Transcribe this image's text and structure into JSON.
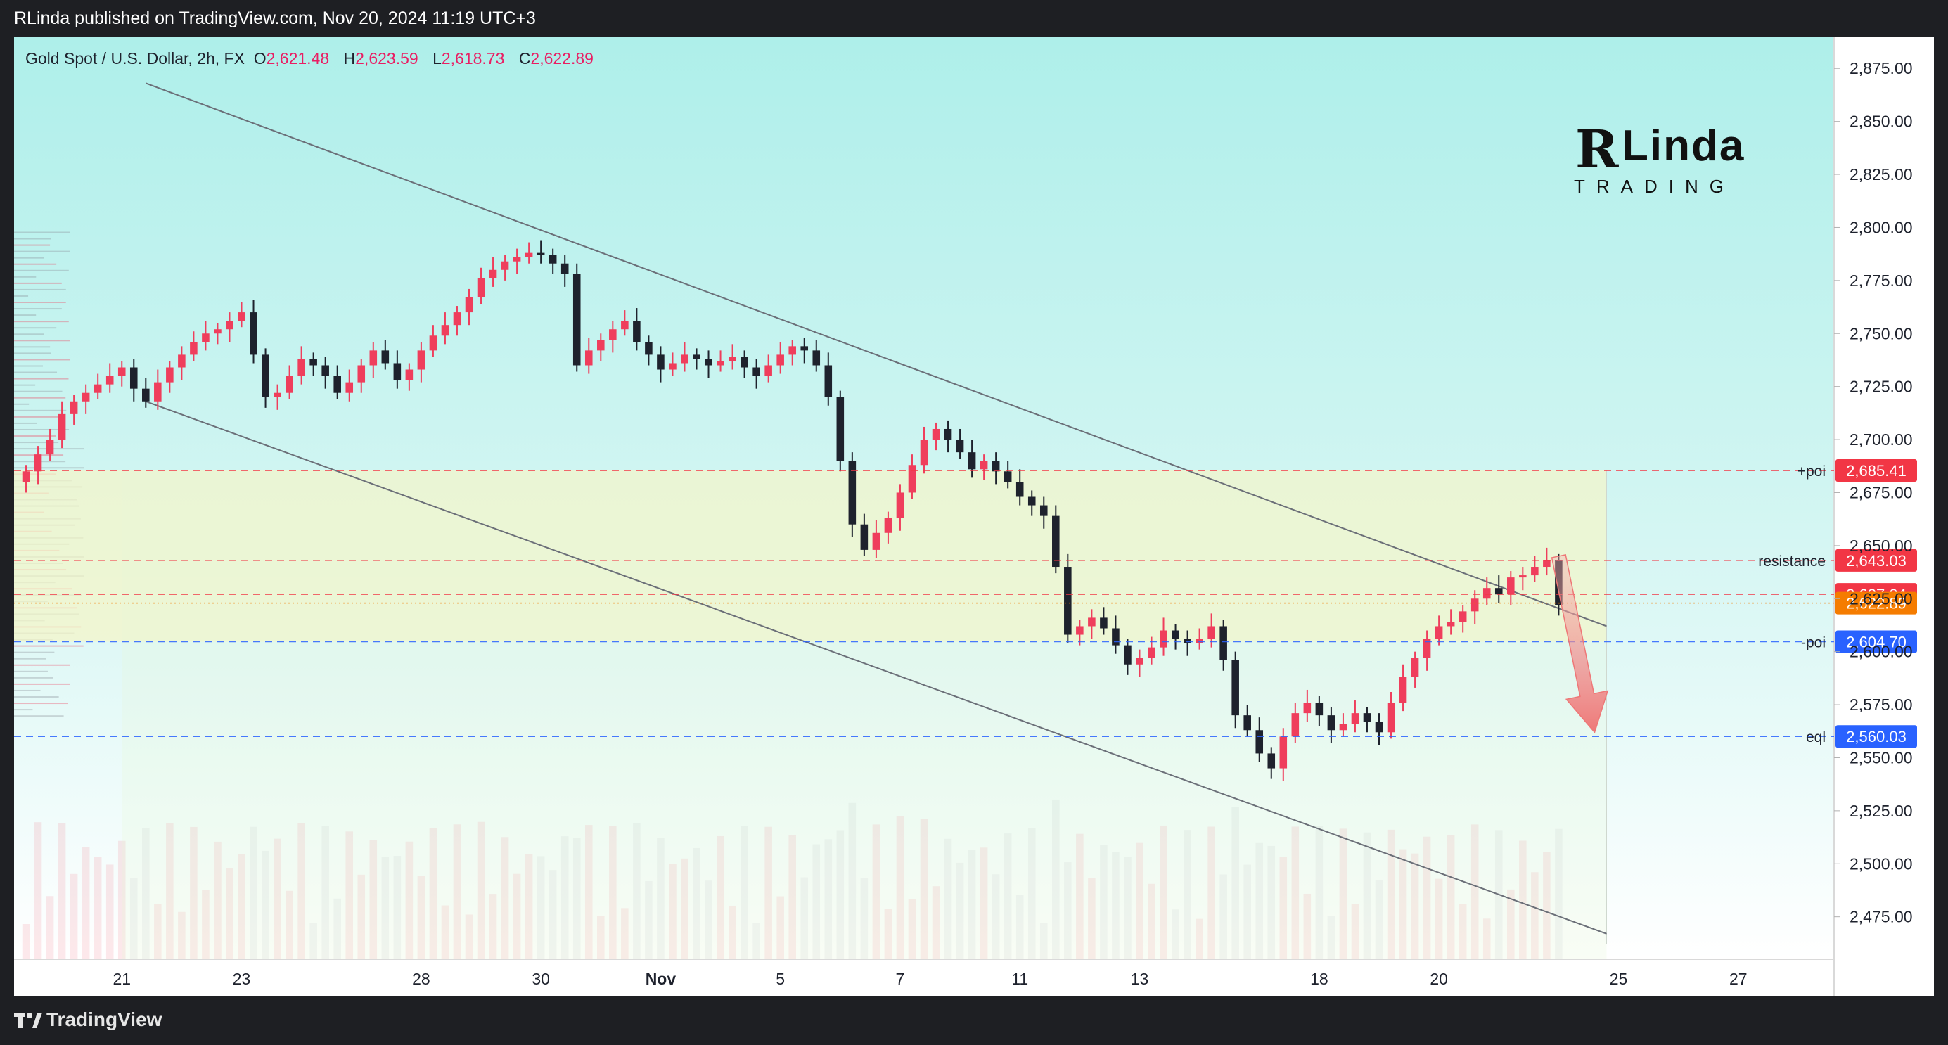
{
  "header": {
    "published": "RLinda published on TradingView.com, Nov 20, 2024 11:19 UTC+3"
  },
  "legend": {
    "symbol": "Gold Spot / U.S. Dollar, 2h, FX",
    "o_label": "O",
    "o": "2,621.48",
    "h_label": "H",
    "h": "2,623.59",
    "l_label": "L",
    "l": "2,618.73",
    "c_label": "C",
    "c": "2,622.89"
  },
  "logo": {
    "brand_r": "R",
    "brand_linda": "Linda",
    "brand_trading": "TRADING"
  },
  "footer": {
    "brand": "TradingView",
    "icon": "tradingview-logo-icon"
  },
  "colors": {
    "up": "#ef3e5c",
    "down": "#1e222d",
    "bg_top": "#b3f0ec",
    "bg_bottom": "#ffffff",
    "zone": "#f5f5c8",
    "price_tag": "#f57c00",
    "poi_red": "#f23645",
    "poi_blue": "#2962ff",
    "arrow": "#f28b8b"
  },
  "chart_data": {
    "type": "candlestick",
    "symbol": "Gold Spot / U.S. Dollar",
    "timeframe": "2h",
    "ylim": [
      2455,
      2890
    ],
    "y_ticks": [
      2475,
      2500,
      2525,
      2550,
      2575,
      2600,
      2625,
      2650,
      2675,
      2700,
      2725,
      2750,
      2775,
      2800,
      2825,
      2850,
      2875
    ],
    "y_tick_labels": [
      "2,475.00",
      "2,500.00",
      "2,525.00",
      "2,550.00",
      "2,575.00",
      "2,600.00",
      "2,625.00",
      "2,650.00",
      "2,675.00",
      "2,700.00",
      "2,725.00",
      "2,750.00",
      "2,775.00",
      "2,800.00",
      "2,825.00",
      "2,850.00",
      "2,875.00"
    ],
    "x_ticks": [
      {
        "label": "21",
        "t": 8
      },
      {
        "label": "23",
        "t": 18
      },
      {
        "label": "28",
        "t": 33
      },
      {
        "label": "30",
        "t": 43
      },
      {
        "label": "Nov",
        "t": 53
      },
      {
        "label": "5",
        "t": 63
      },
      {
        "label": "7",
        "t": 73
      },
      {
        "label": "11",
        "t": 83
      },
      {
        "label": "13",
        "t": 93
      },
      {
        "label": "18",
        "t": 108
      },
      {
        "label": "20",
        "t": 118
      },
      {
        "label": "25",
        "t": 133
      },
      {
        "label": "27",
        "t": 143
      }
    ],
    "x_range": [
      -1,
      151
    ],
    "closes": [
      2685,
      2693,
      2700,
      2712,
      2718,
      2722,
      2726,
      2730,
      2734,
      2724,
      2718,
      2727,
      2734,
      2740,
      2746,
      2750,
      2752,
      2756,
      2760,
      2740,
      2720,
      2722,
      2730,
      2738,
      2735,
      2730,
      2722,
      2727,
      2735,
      2742,
      2736,
      2728,
      2733,
      2742,
      2749,
      2754,
      2760,
      2767,
      2776,
      2780,
      2784,
      2786,
      2788,
      2787,
      2783,
      2778,
      2735,
      2742,
      2747,
      2752,
      2756,
      2746,
      2740,
      2733,
      2736,
      2740,
      2738,
      2735,
      2737,
      2739,
      2734,
      2730,
      2735,
      2740,
      2744,
      2742,
      2735,
      2720,
      2690,
      2660,
      2648,
      2656,
      2663,
      2675,
      2688,
      2700,
      2705,
      2700,
      2694,
      2686,
      2690,
      2685,
      2680,
      2673,
      2669,
      2664,
      2640,
      2608,
      2612,
      2616,
      2611,
      2603,
      2594,
      2597,
      2602,
      2610,
      2606,
      2604,
      2606,
      2612,
      2596,
      2570,
      2563,
      2552,
      2545,
      2560,
      2571,
      2576,
      2570,
      2563,
      2566,
      2571,
      2567,
      2562,
      2576,
      2588,
      2597,
      2606,
      2612,
      2614,
      2619,
      2625,
      2630,
      2627,
      2635,
      2636,
      2640,
      2643,
      2622
    ],
    "open": 2680,
    "annotations": [
      {
        "label": "+poi",
        "value": 2685.41,
        "tag": "2,685.41",
        "color": "#f23645",
        "dash": "dashed"
      },
      {
        "label": "resistance",
        "value": 2643.03,
        "tag": "2,643.03",
        "color": "#f23645",
        "dash": "dashed"
      },
      {
        "label": "",
        "value": 2627.04,
        "tag": "2,627.04",
        "color": "#f23645",
        "dash": "dashed"
      },
      {
        "label": "",
        "value": 2622.89,
        "tag": "2,622.89",
        "color": "#f57c00",
        "dash": "dotted"
      },
      {
        "label": "-poi",
        "value": 2604.7,
        "tag": "2,604.70",
        "color": "#2962ff",
        "dash": "dashed"
      },
      {
        "label": "eql",
        "value": 2560.03,
        "tag": "2,560.03",
        "color": "#2962ff",
        "dash": "dashed"
      }
    ],
    "zone": {
      "from": 2604.7,
      "to": 2685.41,
      "t_end": 132
    },
    "channel": {
      "upper": [
        {
          "t": 10,
          "v": 2868
        },
        {
          "t": 132,
          "v": 2612
        }
      ],
      "lower": [
        {
          "t": 10,
          "v": 2718
        },
        {
          "t": 132,
          "v": 2467
        }
      ]
    },
    "arrow": {
      "t_from": 128,
      "v_from": 2645,
      "t_to": 131,
      "v_to": 2562
    }
  }
}
